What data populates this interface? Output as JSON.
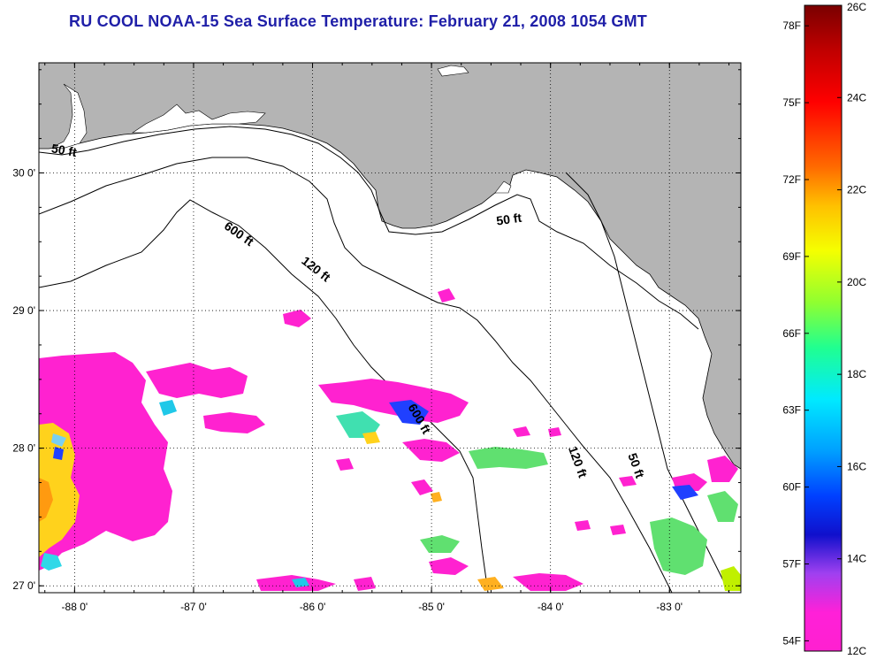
{
  "title": "RU COOL  NOAA-15  Sea Surface Temperature:  February 21, 2008 1054 GMT",
  "map": {
    "lon_range": [
      -88.3,
      -82.4
    ],
    "lat_range": [
      26.95,
      30.8
    ],
    "lon_ticks": [
      {
        "value": -88,
        "label": "-88 0'"
      },
      {
        "value": -87,
        "label": "-87 0'"
      },
      {
        "value": -86,
        "label": "-86 0'"
      },
      {
        "value": -85,
        "label": "-85 0'"
      },
      {
        "value": -84,
        "label": "-84 0'"
      },
      {
        "value": -83,
        "label": "-83 0'"
      }
    ],
    "lat_ticks": [
      {
        "value": 30,
        "label": "30 0'"
      },
      {
        "value": 29,
        "label": "29 0'"
      },
      {
        "value": 28,
        "label": "28 0'"
      },
      {
        "value": 27,
        "label": "27 0'"
      }
    ],
    "contour_labels": [
      {
        "text": "50 ft",
        "lon": -88.2,
        "lat": 30.15,
        "rotate": 10
      },
      {
        "text": "600 ft",
        "lon": -86.75,
        "lat": 29.6,
        "rotate": 35
      },
      {
        "text": "120 ft",
        "lon": -86.1,
        "lat": 29.35,
        "rotate": 38
      },
      {
        "text": "50 ft",
        "lon": -84.45,
        "lat": 29.62,
        "rotate": -8
      },
      {
        "text": "600 ft",
        "lon": -85.2,
        "lat": 28.3,
        "rotate": 60
      },
      {
        "text": "120 ft",
        "lon": -83.85,
        "lat": 28.0,
        "rotate": 70
      },
      {
        "text": "50 ft",
        "lon": -83.35,
        "lat": 27.95,
        "rotate": 70
      }
    ],
    "land_color": "#b4b4b4",
    "ocean_color": "#ffffff",
    "grid_style": "dotted"
  },
  "colorbar": {
    "fahrenheit_labels": [
      "78F",
      "75F",
      "72F",
      "69F",
      "66F",
      "63F",
      "60F",
      "57F",
      "54F"
    ],
    "celsius_labels": [
      "26C",
      "24C",
      "22C",
      "20C",
      "18C",
      "16C",
      "14C",
      "12C"
    ],
    "f_values": [
      78,
      75,
      72,
      69,
      66,
      63,
      60,
      57,
      54
    ],
    "c_values": [
      26,
      24,
      22,
      20,
      18,
      16,
      14,
      12
    ],
    "c_range": [
      12,
      26
    ],
    "gradient": [
      "#7a0000",
      "#d00000",
      "#ff1a1a",
      "#ff7a00",
      "#ffd000",
      "#f5ff00",
      "#9aff30",
      "#20ff90",
      "#00e8ff",
      "#00a0ff",
      "#0038ff",
      "#1010d0",
      "#b040f0",
      "#ff20d8"
    ]
  }
}
